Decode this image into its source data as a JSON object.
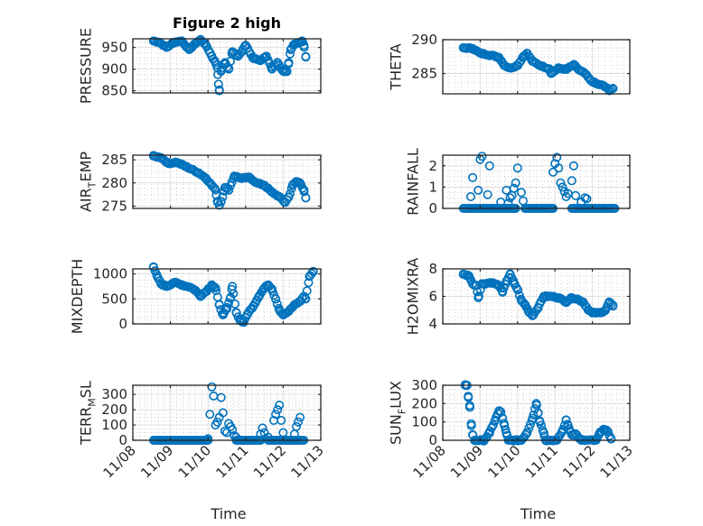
{
  "figure": {
    "title": "Figure 2 high",
    "marker_color": "#0072BD"
  },
  "chart_data": [
    {
      "type": "scatter",
      "id": "pressure",
      "title": "Figure 2 high",
      "ylabel": "PRESSURE",
      "xlabel": "",
      "x_unit": "days since 11/08",
      "xlim": [
        0,
        5
      ],
      "ylim": [
        845,
        970
      ],
      "yticks": [
        850,
        900,
        950
      ],
      "ytick_labels": [
        "850",
        "900",
        "950"
      ],
      "xticks": [
        0,
        1,
        2,
        3,
        4,
        5
      ],
      "xtick_labels": [],
      "grid": true,
      "keypoints": [
        [
          0.55,
          965
        ],
        [
          0.7,
          962
        ],
        [
          0.9,
          950
        ],
        [
          1.1,
          962
        ],
        [
          1.3,
          965
        ],
        [
          1.5,
          945
        ],
        [
          1.7,
          962
        ],
        [
          1.8,
          968
        ],
        [
          1.95,
          955
        ],
        [
          2.1,
          930
        ],
        [
          2.2,
          915
        ],
        [
          2.25,
          903
        ],
        [
          2.28,
          865
        ],
        [
          2.3,
          850
        ],
        [
          2.35,
          898
        ],
        [
          2.45,
          915
        ],
        [
          2.55,
          900
        ],
        [
          2.65,
          940
        ],
        [
          2.8,
          930
        ],
        [
          3.0,
          955
        ],
        [
          3.2,
          925
        ],
        [
          3.4,
          920
        ],
        [
          3.55,
          930
        ],
        [
          3.7,
          900
        ],
        [
          3.85,
          915
        ],
        [
          4.0,
          895
        ],
        [
          4.1,
          895
        ],
        [
          4.15,
          915
        ],
        [
          4.2,
          945
        ],
        [
          4.3,
          958
        ],
        [
          4.4,
          960
        ],
        [
          4.5,
          965
        ],
        [
          4.55,
          955
        ],
        [
          4.6,
          928
        ]
      ]
    },
    {
      "type": "scatter",
      "id": "theta",
      "ylabel": "THETA",
      "xlim": [
        0,
        5
      ],
      "ylim": [
        282,
        290
      ],
      "yticks": [
        285,
        290
      ],
      "ytick_labels": [
        "285",
        "290"
      ],
      "xticks": [
        0,
        1,
        2,
        3,
        4,
        5
      ],
      "xtick_labels": [],
      "grid": true,
      "keypoints": [
        [
          0.55,
          288.8
        ],
        [
          0.8,
          288.7
        ],
        [
          1.0,
          288.0
        ],
        [
          1.3,
          287.7
        ],
        [
          1.5,
          287.4
        ],
        [
          1.65,
          286.2
        ],
        [
          1.8,
          285.8
        ],
        [
          2.0,
          286.2
        ],
        [
          2.15,
          287.5
        ],
        [
          2.25,
          288.0
        ],
        [
          2.4,
          286.8
        ],
        [
          2.6,
          286.2
        ],
        [
          2.85,
          285.7
        ],
        [
          2.9,
          285.0
        ],
        [
          3.1,
          285.8
        ],
        [
          3.3,
          285.6
        ],
        [
          3.5,
          286.3
        ],
        [
          3.65,
          285.5
        ],
        [
          3.8,
          285.0
        ],
        [
          3.95,
          284.0
        ],
        [
          4.1,
          283.5
        ],
        [
          4.3,
          283.2
        ],
        [
          4.45,
          282.5
        ],
        [
          4.55,
          282.8
        ]
      ]
    },
    {
      "type": "scatter",
      "id": "air_temp",
      "ylabel": "AIR_TEMP",
      "xlim": [
        0,
        5
      ],
      "ylim": [
        274.5,
        286
      ],
      "yticks": [
        275,
        280,
        285
      ],
      "ytick_labels": [
        "275",
        "280",
        "285"
      ],
      "xticks": [
        0,
        1,
        2,
        3,
        4,
        5
      ],
      "xtick_labels": [],
      "grid": true,
      "keypoints": [
        [
          0.55,
          285.8
        ],
        [
          0.75,
          285.5
        ],
        [
          0.95,
          284.2
        ],
        [
          1.15,
          284.5
        ],
        [
          1.35,
          283.8
        ],
        [
          1.55,
          283.0
        ],
        [
          1.75,
          282.2
        ],
        [
          1.95,
          281.0
        ],
        [
          2.1,
          279.5
        ],
        [
          2.2,
          278.5
        ],
        [
          2.25,
          276.0
        ],
        [
          2.3,
          275.2
        ],
        [
          2.35,
          276.0
        ],
        [
          2.45,
          279.0
        ],
        [
          2.55,
          278.5
        ],
        [
          2.7,
          281.5
        ],
        [
          2.9,
          281.0
        ],
        [
          3.1,
          281.2
        ],
        [
          3.3,
          280.0
        ],
        [
          3.5,
          279.5
        ],
        [
          3.7,
          278.0
        ],
        [
          3.9,
          277.0
        ],
        [
          4.05,
          275.8
        ],
        [
          4.15,
          277.0
        ],
        [
          4.25,
          279.5
        ],
        [
          4.35,
          280.3
        ],
        [
          4.45,
          280.0
        ],
        [
          4.55,
          278.5
        ],
        [
          4.6,
          276.8
        ]
      ]
    },
    {
      "type": "scatter",
      "id": "rainfall",
      "ylabel": "RAINFALL",
      "xlim": [
        0,
        5
      ],
      "ylim": [
        0,
        2.5
      ],
      "yticks": [
        0,
        1,
        2
      ],
      "ytick_labels": [
        "0",
        "1",
        "2"
      ],
      "xticks": [
        0,
        1,
        2,
        3,
        4,
        5
      ],
      "xtick_labels": [],
      "grid": true,
      "spikes": [
        [
          0.75,
          0.55
        ],
        [
          0.8,
          1.45
        ],
        [
          0.95,
          0.85
        ],
        [
          1.0,
          2.3
        ],
        [
          1.05,
          2.45
        ],
        [
          1.2,
          0.65
        ],
        [
          1.25,
          2.0
        ],
        [
          1.55,
          0.3
        ],
        [
          1.7,
          0.85
        ],
        [
          1.75,
          0.25
        ],
        [
          1.8,
          0.5
        ],
        [
          1.85,
          0.6
        ],
        [
          1.9,
          0.95
        ],
        [
          1.95,
          1.2
        ],
        [
          2.0,
          1.9
        ],
        [
          2.1,
          0.75
        ],
        [
          2.15,
          0.35
        ],
        [
          2.95,
          1.7
        ],
        [
          3.0,
          2.1
        ],
        [
          3.05,
          2.4
        ],
        [
          3.1,
          1.9
        ],
        [
          3.15,
          1.2
        ],
        [
          3.2,
          1.0
        ],
        [
          3.25,
          0.8
        ],
        [
          3.3,
          0.55
        ],
        [
          3.35,
          0.7
        ],
        [
          3.45,
          1.3
        ],
        [
          3.5,
          2.0
        ],
        [
          3.55,
          0.6
        ],
        [
          3.7,
          0.3
        ],
        [
          3.8,
          0.5
        ],
        [
          3.85,
          0.45
        ]
      ],
      "zero_ranges": [
        [
          0.55,
          1.95
        ],
        [
          2.2,
          2.95
        ],
        [
          3.45,
          4.6
        ]
      ]
    },
    {
      "type": "scatter",
      "id": "mixdepth",
      "ylabel": "MIXDEPTH",
      "xlim": [
        0,
        5
      ],
      "ylim": [
        0,
        1100
      ],
      "yticks": [
        0,
        500,
        1000
      ],
      "ytick_labels": [
        "0",
        "500",
        "1000"
      ],
      "xticks": [
        0,
        1,
        2,
        3,
        4,
        5
      ],
      "xtick_labels": [],
      "grid": true,
      "keypoints": [
        [
          0.55,
          1130
        ],
        [
          0.65,
          950
        ],
        [
          0.75,
          800
        ],
        [
          0.9,
          750
        ],
        [
          1.1,
          830
        ],
        [
          1.3,
          780
        ],
        [
          1.5,
          740
        ],
        [
          1.65,
          680
        ],
        [
          1.8,
          560
        ],
        [
          1.95,
          650
        ],
        [
          2.1,
          780
        ],
        [
          2.2,
          720
        ],
        [
          2.3,
          380
        ],
        [
          2.4,
          180
        ],
        [
          2.5,
          300
        ],
        [
          2.6,
          530
        ],
        [
          2.65,
          750
        ],
        [
          2.75,
          230
        ],
        [
          2.85,
          70
        ],
        [
          2.95,
          30
        ],
        [
          3.05,
          200
        ],
        [
          3.2,
          350
        ],
        [
          3.35,
          550
        ],
        [
          3.5,
          720
        ],
        [
          3.6,
          780
        ],
        [
          3.7,
          700
        ],
        [
          3.8,
          500
        ],
        [
          3.9,
          280
        ],
        [
          4.0,
          180
        ],
        [
          4.15,
          250
        ],
        [
          4.3,
          380
        ],
        [
          4.45,
          450
        ],
        [
          4.55,
          550
        ],
        [
          4.6,
          500
        ],
        [
          4.7,
          950
        ],
        [
          4.8,
          1050
        ]
      ]
    },
    {
      "type": "scatter",
      "id": "h2omixra",
      "ylabel": "H2OMIXRA",
      "xlim": [
        0,
        5
      ],
      "ylim": [
        4,
        8
      ],
      "yticks": [
        4,
        6,
        8
      ],
      "ytick_labels": [
        "4",
        "6",
        "8"
      ],
      "xticks": [
        0,
        1,
        2,
        3,
        4,
        5
      ],
      "xtick_labels": [],
      "grid": true,
      "keypoints": [
        [
          0.55,
          7.6
        ],
        [
          0.7,
          7.5
        ],
        [
          0.8,
          6.9
        ],
        [
          0.9,
          6.8
        ],
        [
          0.95,
          5.9
        ],
        [
          1.05,
          6.9
        ],
        [
          1.3,
          7.0
        ],
        [
          1.5,
          6.8
        ],
        [
          1.6,
          6.3
        ],
        [
          1.7,
          7.1
        ],
        [
          1.8,
          7.6
        ],
        [
          1.9,
          7.0
        ],
        [
          2.0,
          6.5
        ],
        [
          2.1,
          5.7
        ],
        [
          2.2,
          5.4
        ],
        [
          2.3,
          4.9
        ],
        [
          2.4,
          4.6
        ],
        [
          2.55,
          5.2
        ],
        [
          2.7,
          6.0
        ],
        [
          2.9,
          6.0
        ],
        [
          3.1,
          5.9
        ],
        [
          3.3,
          5.6
        ],
        [
          3.45,
          5.9
        ],
        [
          3.6,
          5.8
        ],
        [
          3.75,
          5.6
        ],
        [
          3.9,
          5.0
        ],
        [
          4.0,
          4.8
        ],
        [
          4.2,
          4.8
        ],
        [
          4.35,
          5.0
        ],
        [
          4.45,
          5.6
        ],
        [
          4.55,
          5.3
        ]
      ]
    },
    {
      "type": "scatter",
      "id": "terr_msl",
      "ylabel": "TERR_MSL",
      "xlabel": "Time",
      "xlim": [
        0,
        5
      ],
      "ylim": [
        0,
        360
      ],
      "yticks": [
        0,
        100,
        200,
        300
      ],
      "ytick_labels": [
        "0",
        "100",
        "200",
        "300"
      ],
      "xticks": [
        0,
        1,
        2,
        3,
        4,
        5
      ],
      "xtick_labels": [
        "11/08",
        "11/09",
        "11/10",
        "11/11",
        "11/12",
        "11/13"
      ],
      "grid": true,
      "spikes": [
        [
          2.0,
          10
        ],
        [
          2.05,
          170
        ],
        [
          2.1,
          350
        ],
        [
          2.15,
          290
        ],
        [
          2.2,
          100
        ],
        [
          2.25,
          120
        ],
        [
          2.3,
          150
        ],
        [
          2.35,
          280
        ],
        [
          2.4,
          180
        ],
        [
          2.45,
          60
        ],
        [
          2.5,
          50
        ],
        [
          2.55,
          110
        ],
        [
          2.6,
          90
        ],
        [
          2.65,
          70
        ],
        [
          2.7,
          30
        ],
        [
          2.75,
          20
        ],
        [
          3.4,
          40
        ],
        [
          3.45,
          80
        ],
        [
          3.5,
          50
        ],
        [
          3.6,
          20
        ],
        [
          3.75,
          130
        ],
        [
          3.8,
          170
        ],
        [
          3.85,
          200
        ],
        [
          3.9,
          230
        ],
        [
          3.95,
          130
        ],
        [
          4.0,
          50
        ],
        [
          4.3,
          40
        ],
        [
          4.35,
          90
        ],
        [
          4.4,
          120
        ],
        [
          4.45,
          150
        ]
      ],
      "zero_ranges": [
        [
          0.55,
          2.0
        ],
        [
          2.75,
          3.4
        ],
        [
          3.6,
          4.55
        ]
      ]
    },
    {
      "type": "scatter",
      "id": "sun_flux",
      "ylabel": "SUN_FLUX",
      "xlabel": "Time",
      "xlim": [
        0,
        5
      ],
      "ylim": [
        0,
        300
      ],
      "yticks": [
        0,
        100,
        200,
        300
      ],
      "ytick_labels": [
        "0",
        "100",
        "200",
        "300"
      ],
      "xticks": [
        0,
        1,
        2,
        3,
        4,
        5
      ],
      "xtick_labels": [
        "11/08",
        "11/09",
        "11/10",
        "11/11",
        "11/12",
        "11/13"
      ],
      "grid": true,
      "keypoints": [
        [
          0.6,
          300
        ],
        [
          0.65,
          300
        ],
        [
          0.68,
          240
        ],
        [
          0.72,
          190
        ],
        [
          0.76,
          90
        ],
        [
          0.8,
          30
        ],
        [
          0.85,
          0
        ],
        [
          1.1,
          0
        ],
        [
          1.25,
          40
        ],
        [
          1.4,
          110
        ],
        [
          1.5,
          160
        ],
        [
          1.55,
          155
        ],
        [
          1.6,
          120
        ],
        [
          1.65,
          80
        ],
        [
          1.7,
          40
        ],
        [
          1.75,
          0
        ],
        [
          2.1,
          0
        ],
        [
          2.25,
          40
        ],
        [
          2.4,
          120
        ],
        [
          2.5,
          200
        ],
        [
          2.55,
          150
        ],
        [
          2.6,
          100
        ],
        [
          2.7,
          40
        ],
        [
          2.75,
          0
        ],
        [
          3.05,
          0
        ],
        [
          3.2,
          50
        ],
        [
          3.3,
          110
        ],
        [
          3.35,
          80
        ],
        [
          3.45,
          30
        ],
        [
          3.55,
          35
        ],
        [
          3.65,
          10
        ],
        [
          3.7,
          0
        ],
        [
          4.1,
          0
        ],
        [
          4.2,
          40
        ],
        [
          4.3,
          60
        ],
        [
          4.4,
          50
        ],
        [
          4.5,
          10
        ]
      ]
    }
  ]
}
